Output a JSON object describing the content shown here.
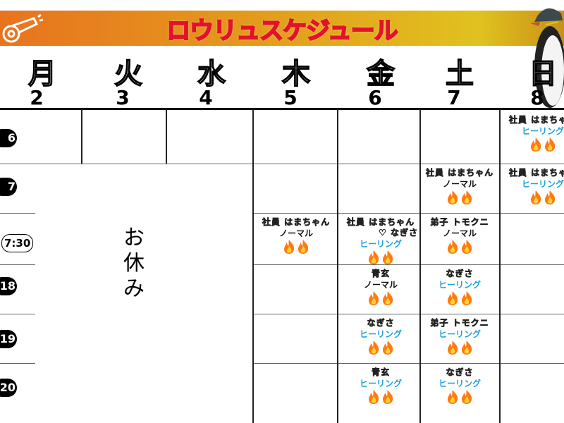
{
  "header": {
    "title": "ロウリュスケジュール",
    "banner_gradient": [
      "#e8731f",
      "#e0c21f"
    ],
    "title_outline_color": "#e3122a",
    "whistle_icon": "whistle-icon",
    "mascot": "penguin-mascot"
  },
  "days": [
    {
      "name": "月",
      "date": "2"
    },
    {
      "name": "火",
      "date": "3"
    },
    {
      "name": "水",
      "date": "4"
    },
    {
      "name": "木",
      "date": "5"
    },
    {
      "name": "金",
      "date": "6"
    },
    {
      "name": "土",
      "date": "7"
    },
    {
      "name": "日",
      "date": "8"
    }
  ],
  "times": [
    "6",
    "7",
    "7:30",
    "18",
    "19",
    "20"
  ],
  "off_label": "お休み",
  "colors": {
    "normal": "#111111",
    "healing": "#1aa0dc",
    "flame": "#ff7a10"
  },
  "entries": [
    {
      "day": 6,
      "row": 0,
      "name": "社員 はまちゃん",
      "mode": "ヒーリング",
      "flames": 2
    },
    {
      "day": 6,
      "row": 1,
      "name": "社員 はまちゃん",
      "mode": "ヒーリング",
      "flames": 2
    },
    {
      "day": 5,
      "row": 1,
      "name": "社員 はまちゃん",
      "mode": "ノーマル",
      "flames": 2
    },
    {
      "day": 5,
      "row": 2,
      "name": "弟子 トモクニ",
      "mode": "ノーマル",
      "flames": 2
    },
    {
      "day": 5,
      "row": 3,
      "name": "なぎさ",
      "mode": "ヒーリング",
      "flames": 2
    },
    {
      "day": 5,
      "row": 4,
      "name": "弟子 トモクニ",
      "mode": "ヒーリング",
      "flames": 2
    },
    {
      "day": 5,
      "row": 5,
      "name": "なぎさ",
      "mode": "ヒーリング",
      "flames": 2
    },
    {
      "day": 4,
      "row": 2,
      "name": "社員 はまちゃん ♡ なぎさ",
      "mode": "ヒーリング",
      "flames": 2
    },
    {
      "day": 4,
      "row": 3,
      "name": "青玄",
      "mode": "ノーマル",
      "flames": 2
    },
    {
      "day": 4,
      "row": 4,
      "name": "なぎさ",
      "mode": "ヒーリング",
      "flames": 2
    },
    {
      "day": 4,
      "row": 5,
      "name": "青玄",
      "mode": "ヒーリング",
      "flames": 2
    },
    {
      "day": 3,
      "row": 2,
      "name": "社員 はまちゃん",
      "mode": "ノーマル",
      "flames": 2
    }
  ]
}
